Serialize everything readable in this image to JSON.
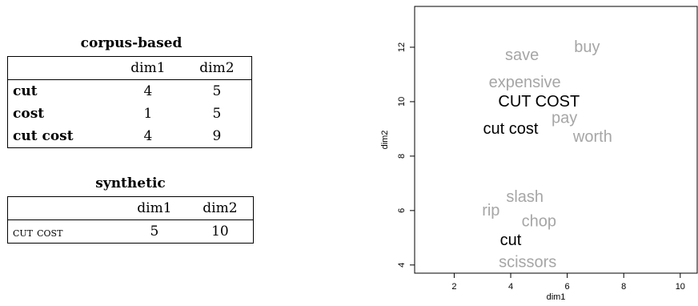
{
  "corpus_table": {
    "title": "corpus-based",
    "columns": [
      "",
      "dim1",
      "dim2"
    ],
    "rows": [
      {
        "label": "cut",
        "dim1": "4",
        "dim2": "5"
      },
      {
        "label": "cost",
        "dim1": "1",
        "dim2": "5"
      },
      {
        "label": "cut cost",
        "dim1": "4",
        "dim2": "9"
      }
    ]
  },
  "synthetic_table": {
    "title": "synthetic",
    "columns": [
      "",
      "dim1",
      "dim2"
    ],
    "rows": [
      {
        "label": "cut cost",
        "dim1": "5",
        "dim2": "10"
      }
    ]
  },
  "chart_data": {
    "type": "scatter",
    "xlabel": "dim1",
    "ylabel": "dim2",
    "xlim": [
      0.6,
      10.6
    ],
    "ylim": [
      3.7,
      13.5
    ],
    "xticks": [
      2,
      4,
      6,
      8,
      10
    ],
    "yticks": [
      4,
      6,
      8,
      10,
      12
    ],
    "grid": false,
    "points": [
      {
        "label": "save",
        "x": 4.4,
        "y": 11.7,
        "color": "#a6a6a6"
      },
      {
        "label": "buy",
        "x": 6.7,
        "y": 12.0,
        "color": "#a6a6a6"
      },
      {
        "label": "expensive",
        "x": 4.5,
        "y": 10.7,
        "color": "#a6a6a6"
      },
      {
        "label": "CUT COST",
        "x": 5.0,
        "y": 10.0,
        "color": "#000000"
      },
      {
        "label": "pay",
        "x": 5.9,
        "y": 9.4,
        "color": "#a6a6a6"
      },
      {
        "label": "cut cost",
        "x": 4.0,
        "y": 9.0,
        "color": "#000000"
      },
      {
        "label": "worth",
        "x": 6.9,
        "y": 8.7,
        "color": "#a6a6a6"
      },
      {
        "label": "slash",
        "x": 4.5,
        "y": 6.5,
        "color": "#a6a6a6"
      },
      {
        "label": "rip",
        "x": 3.3,
        "y": 6.0,
        "color": "#a6a6a6"
      },
      {
        "label": "chop",
        "x": 5.0,
        "y": 5.6,
        "color": "#a6a6a6"
      },
      {
        "label": "cut",
        "x": 4.0,
        "y": 4.9,
        "color": "#000000"
      },
      {
        "label": "scissors",
        "x": 4.6,
        "y": 4.1,
        "color": "#a6a6a6"
      }
    ]
  }
}
